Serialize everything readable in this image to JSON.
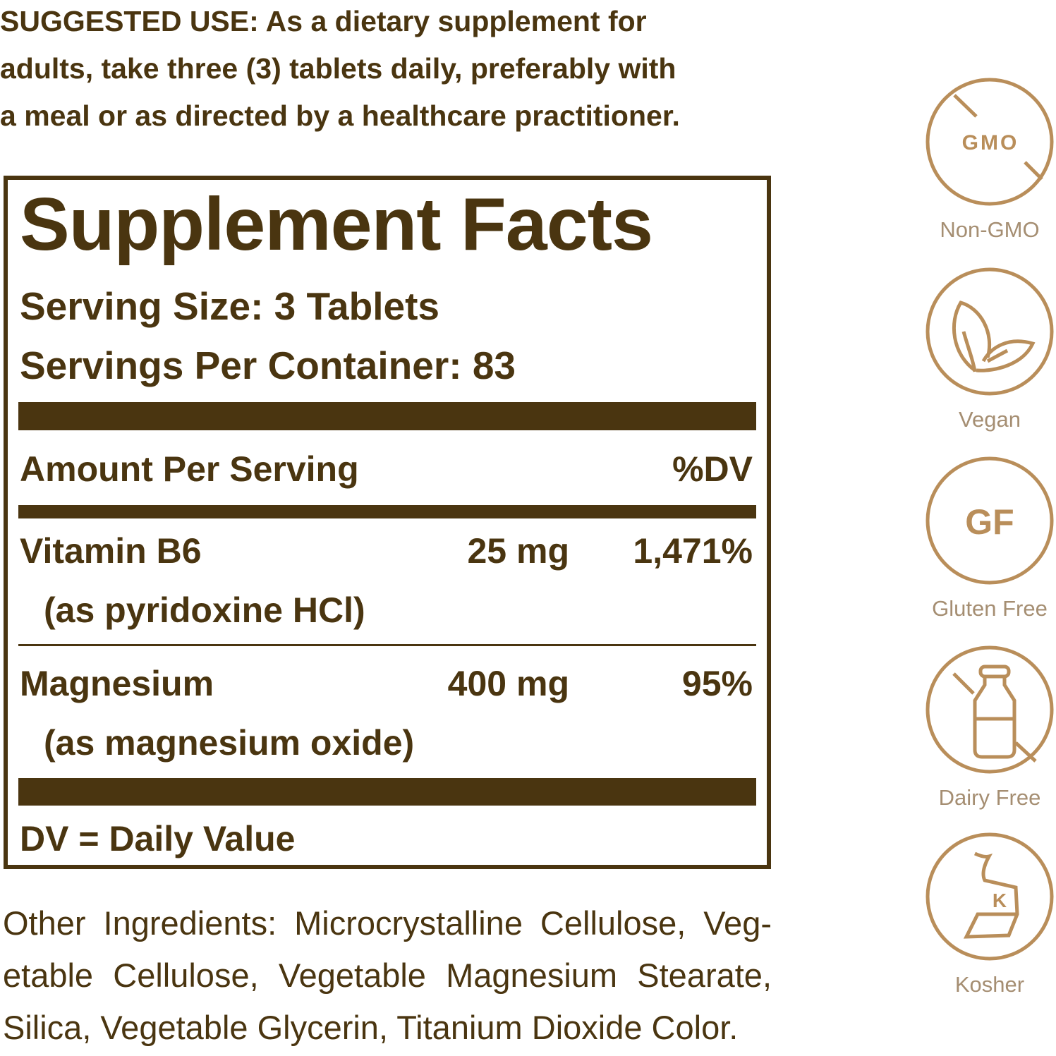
{
  "suggested_use": {
    "lines": [
      "SUGGESTED USE: As a dietary supplement for",
      "adults, take three (3) tablets daily, preferably with",
      "a meal or as directed by a healthcare practitioner."
    ]
  },
  "facts": {
    "title": "Supplement Facts",
    "serving_size": "Serving Size: 3 Tablets",
    "servings_per_container": "Servings Per Container: 83",
    "amount_header": "Amount Per Serving",
    "dv_header": "%DV",
    "nutrients": [
      {
        "name": "Vitamin B6",
        "source": "(as pyridoxine HCl)",
        "amount": "25 mg",
        "dv": "1,471%"
      },
      {
        "name": "Magnesium",
        "source": "(as magnesium oxide)",
        "amount": "400 mg",
        "dv": "95%"
      }
    ],
    "footnote": "DV = Daily Value"
  },
  "other_ingredients": {
    "lines": [
      "Other Ingredients: Microcrystalline Cellulose, Veg-",
      "etable Cellulose, Vegetable Magnesium Stearate,",
      "Silica, Vegetable Glycerin, Titanium Dioxide Color."
    ]
  },
  "badges": [
    {
      "icon": "no-gmo-icon",
      "icon_text": "GMO",
      "label": "Non-GMO"
    },
    {
      "icon": "leaf-icon",
      "label": "Vegan"
    },
    {
      "icon": "gluten-free-icon",
      "icon_text": "GF",
      "label": "Gluten Free"
    },
    {
      "icon": "no-milk-bottle-icon",
      "label": "Dairy Free"
    },
    {
      "icon": "kosher-icon",
      "icon_text": "K",
      "label": "Kosher"
    }
  ],
  "colors": {
    "text": "#4a3510",
    "icon": "#b98e5a",
    "badge_label": "#a58e72"
  }
}
